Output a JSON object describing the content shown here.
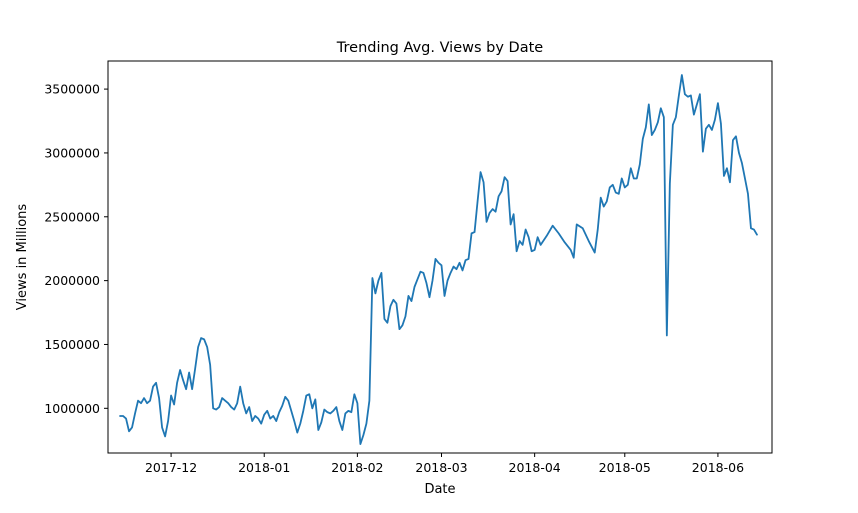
{
  "chart_data": {
    "type": "line",
    "title": "Trending Avg. Views by Date",
    "xlabel": "Date",
    "ylabel": "Views in Millions",
    "x_ticks": [
      "2017-12",
      "2018-01",
      "2018-02",
      "2018-03",
      "2018-04",
      "2018-05",
      "2018-06"
    ],
    "y_ticks": [
      "1000000",
      "1500000",
      "2000000",
      "2500000",
      "3000000",
      "3500000"
    ],
    "xlim": [
      "2017-11-10",
      "2018-06-19"
    ],
    "ylim": [
      650000,
      3720000
    ],
    "grid": false,
    "line_color": "#1f77b4",
    "series": [
      {
        "x": [
          "2017-11-14",
          "2017-11-15",
          "2017-11-16",
          "2017-11-17",
          "2017-11-18",
          "2017-11-19",
          "2017-11-20",
          "2017-11-21",
          "2017-11-22",
          "2017-11-23",
          "2017-11-24",
          "2017-11-25",
          "2017-11-26",
          "2017-11-27",
          "2017-11-28",
          "2017-11-29",
          "2017-11-30",
          "2017-12-01",
          "2017-12-02",
          "2017-12-03",
          "2017-12-04",
          "2017-12-05",
          "2017-12-06",
          "2017-12-07",
          "2017-12-08",
          "2017-12-09",
          "2017-12-10",
          "2017-12-11",
          "2017-12-12",
          "2017-12-13",
          "2017-12-14",
          "2017-12-15",
          "2017-12-16",
          "2017-12-17",
          "2017-12-18",
          "2017-12-19",
          "2017-12-20",
          "2017-12-21",
          "2017-12-22",
          "2017-12-23",
          "2017-12-24",
          "2017-12-25",
          "2017-12-26",
          "2017-12-27",
          "2017-12-28",
          "2017-12-29",
          "2017-12-30",
          "2017-12-31",
          "2018-01-01",
          "2018-01-02",
          "2018-01-03",
          "2018-01-04",
          "2018-01-05",
          "2018-01-06",
          "2018-01-07",
          "2018-01-08",
          "2018-01-09",
          "2018-01-10",
          "2018-01-11",
          "2018-01-12",
          "2018-01-13",
          "2018-01-14",
          "2018-01-15",
          "2018-01-16",
          "2018-01-17",
          "2018-01-18",
          "2018-01-19",
          "2018-01-20",
          "2018-01-21",
          "2018-01-22",
          "2018-01-23",
          "2018-01-24",
          "2018-01-25",
          "2018-01-26",
          "2018-01-27",
          "2018-01-28",
          "2018-01-29",
          "2018-01-30",
          "2018-01-31",
          "2018-02-01",
          "2018-02-02",
          "2018-02-03",
          "2018-02-04",
          "2018-02-05",
          "2018-02-06",
          "2018-02-07",
          "2018-02-08",
          "2018-02-09",
          "2018-02-10",
          "2018-02-11",
          "2018-02-12",
          "2018-02-13",
          "2018-02-14",
          "2018-02-15",
          "2018-02-16",
          "2018-02-17",
          "2018-02-18",
          "2018-02-19",
          "2018-02-20",
          "2018-02-21",
          "2018-02-22",
          "2018-02-23",
          "2018-02-24",
          "2018-02-25",
          "2018-02-26",
          "2018-02-27",
          "2018-02-28",
          "2018-03-01",
          "2018-03-02",
          "2018-03-03",
          "2018-03-04",
          "2018-03-05",
          "2018-03-06",
          "2018-03-07",
          "2018-03-08",
          "2018-03-09",
          "2018-03-10",
          "2018-03-11",
          "2018-03-12",
          "2018-03-13",
          "2018-03-14",
          "2018-03-15",
          "2018-03-16",
          "2018-03-17",
          "2018-03-18",
          "2018-03-19",
          "2018-03-20",
          "2018-03-21",
          "2018-03-22",
          "2018-03-23",
          "2018-03-24",
          "2018-03-25",
          "2018-03-26",
          "2018-03-27",
          "2018-03-28",
          "2018-03-29",
          "2018-03-30",
          "2018-03-31",
          "2018-04-01",
          "2018-04-02",
          "2018-04-03",
          "2018-04-05",
          "2018-04-07",
          "2018-04-09",
          "2018-04-11",
          "2018-04-13",
          "2018-04-14",
          "2018-04-15",
          "2018-04-17",
          "2018-04-19",
          "2018-04-21",
          "2018-04-22",
          "2018-04-23",
          "2018-04-24",
          "2018-04-25",
          "2018-04-26",
          "2018-04-27",
          "2018-04-28",
          "2018-04-29",
          "2018-04-30",
          "2018-05-01",
          "2018-05-02",
          "2018-05-03",
          "2018-05-04",
          "2018-05-05",
          "2018-05-06",
          "2018-05-07",
          "2018-05-08",
          "2018-05-09",
          "2018-05-10",
          "2018-05-11",
          "2018-05-12",
          "2018-05-13",
          "2018-05-14",
          "2018-05-15",
          "2018-05-16",
          "2018-05-17",
          "2018-05-18",
          "2018-05-19",
          "2018-05-20",
          "2018-05-21",
          "2018-05-22",
          "2018-05-23",
          "2018-05-24",
          "2018-05-25",
          "2018-05-26",
          "2018-05-27",
          "2018-05-28",
          "2018-05-29",
          "2018-05-30",
          "2018-05-31",
          "2018-06-01",
          "2018-06-02",
          "2018-06-03",
          "2018-06-04",
          "2018-06-05",
          "2018-06-06",
          "2018-06-07",
          "2018-06-08",
          "2018-06-09",
          "2018-06-10",
          "2018-06-11",
          "2018-06-12",
          "2018-06-13",
          "2018-06-14"
        ],
        "y": [
          940000,
          940000,
          920000,
          820000,
          850000,
          960000,
          1060000,
          1040000,
          1080000,
          1040000,
          1060000,
          1170000,
          1200000,
          1080000,
          850000,
          780000,
          900000,
          1100000,
          1030000,
          1200000,
          1300000,
          1220000,
          1150000,
          1280000,
          1150000,
          1310000,
          1480000,
          1550000,
          1540000,
          1480000,
          1340000,
          1000000,
          990000,
          1010000,
          1080000,
          1060000,
          1040000,
          1010000,
          990000,
          1040000,
          1170000,
          1040000,
          960000,
          1010000,
          900000,
          940000,
          920000,
          880000,
          950000,
          980000,
          920000,
          940000,
          900000,
          970000,
          1020000,
          1090000,
          1060000,
          980000,
          900000,
          810000,
          880000,
          980000,
          1100000,
          1110000,
          1000000,
          1070000,
          830000,
          890000,
          990000,
          970000,
          960000,
          980000,
          1010000,
          900000,
          830000,
          960000,
          980000,
          970000,
          1110000,
          1040000,
          720000,
          790000,
          880000,
          1060000,
          2020000,
          1900000,
          2000000,
          2060000,
          1700000,
          1670000,
          1800000,
          1850000,
          1820000,
          1620000,
          1650000,
          1720000,
          1880000,
          1840000,
          1950000,
          2010000,
          2070000,
          2060000,
          1980000,
          1870000,
          2000000,
          2170000,
          2140000,
          2120000,
          1880000,
          2000000,
          2060000,
          2110000,
          2090000,
          2140000,
          2080000,
          2160000,
          2170000,
          2370000,
          2380000,
          2620000,
          2850000,
          2770000,
          2460000,
          2530000,
          2560000,
          2540000,
          2660000,
          2700000,
          2810000,
          2780000,
          2440000,
          2520000,
          2230000,
          2310000,
          2280000,
          2400000,
          2340000,
          2230000,
          2240000,
          2340000,
          2280000,
          2350000,
          2430000,
          2370000,
          2300000,
          2240000,
          2180000,
          2440000,
          2410000,
          2310000,
          2220000,
          2400000,
          2650000,
          2580000,
          2620000,
          2730000,
          2750000,
          2690000,
          2680000,
          2800000,
          2730000,
          2750000,
          2880000,
          2800000,
          2800000,
          2910000,
          3110000,
          3200000,
          3380000,
          3140000,
          3180000,
          3240000,
          3350000,
          3280000,
          1570000,
          2760000,
          3220000,
          3280000,
          3450000,
          3610000,
          3460000,
          3440000,
          3450000,
          3300000,
          3380000,
          3460000,
          3010000,
          3190000,
          3220000,
          3180000,
          3260000,
          3390000,
          3230000,
          2820000,
          2880000,
          2770000,
          3100000,
          3130000,
          3000000,
          2920000,
          2800000,
          2680000,
          2410000,
          2400000,
          2360000
        ]
      }
    ]
  }
}
